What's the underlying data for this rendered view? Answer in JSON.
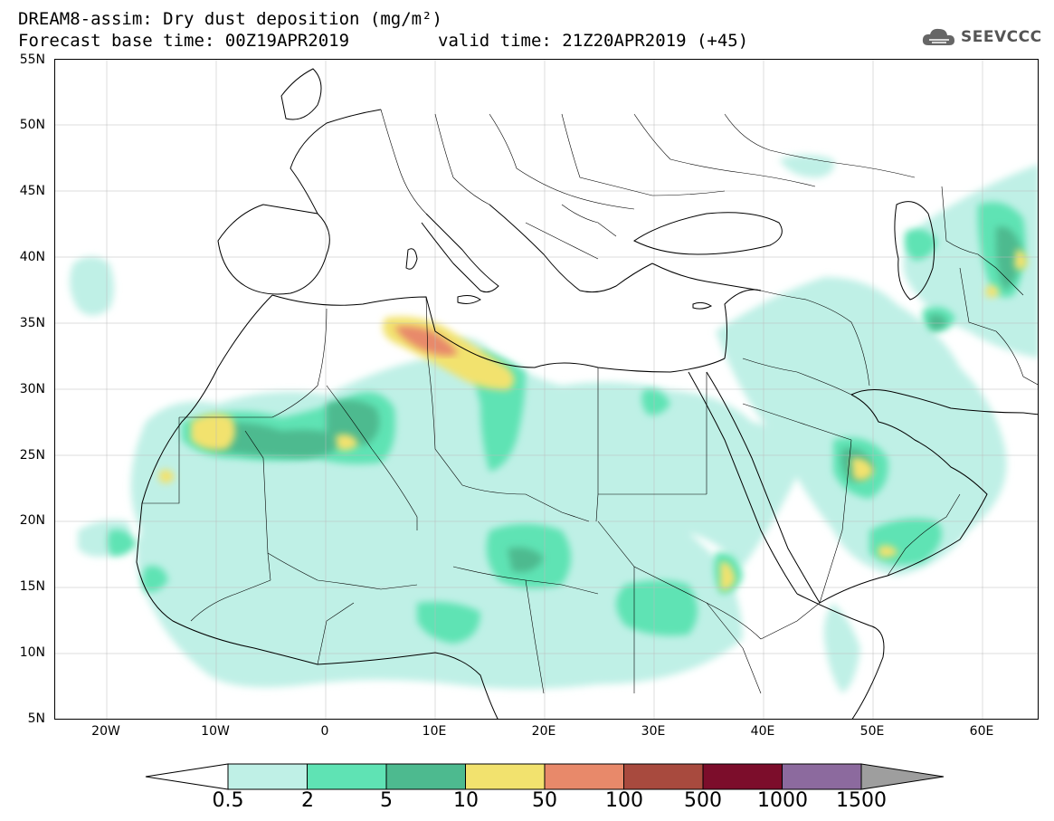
{
  "header": {
    "title_line1": "DREAM8-assim: Dry dust deposition (mg/m²)",
    "title_line2": "Forecast base time: 00Z19APR2019",
    "valid_time": "valid time: 21Z20APR2019 (+45)",
    "logo_text": "SEEVCCC",
    "logo_icon": "cloud-logo-icon"
  },
  "map": {
    "lon_range": [
      -25,
      65
    ],
    "lat_range": [
      5,
      55
    ],
    "lat_labels": [
      "55N",
      "50N",
      "45N",
      "40N",
      "35N",
      "30N",
      "25N",
      "20N",
      "15N",
      "10N",
      "5N"
    ],
    "lon_labels": [
      "20W",
      "10W",
      "0",
      "10E",
      "20E",
      "30E",
      "40E",
      "50E",
      "60E"
    ]
  },
  "colorbar": {
    "labels": [
      "0.5",
      "2",
      "5",
      "10",
      "50",
      "100",
      "500",
      "1000",
      "1500"
    ],
    "colors": [
      "#bff0e6",
      "#5fe3b4",
      "#4dba8f",
      "#f2e26e",
      "#e8896a",
      "#a84a3e",
      "#7c0d2b",
      "#8c6a9e"
    ],
    "below_color": "#ffffff",
    "above_color": "#9e9e9e"
  }
}
